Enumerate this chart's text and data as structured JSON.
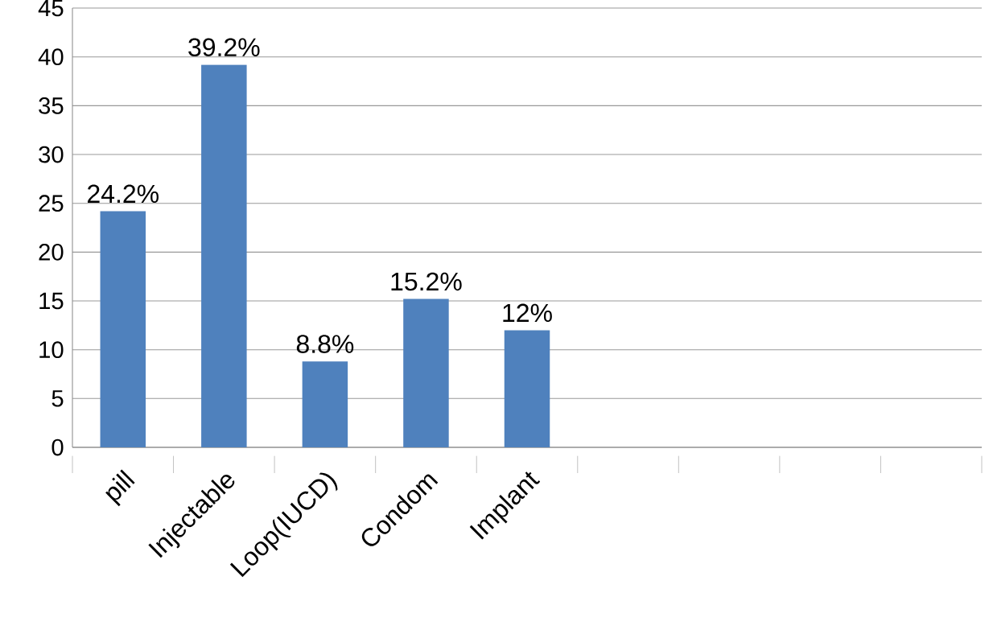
{
  "chart_data": {
    "type": "bar",
    "categories": [
      "pill",
      "Injectable",
      "Loop(IUCD)",
      "Condom",
      "Implant",
      null,
      null,
      null,
      null
    ],
    "values": [
      24.2,
      39.2,
      8.8,
      15.2,
      12,
      null,
      null,
      null,
      null
    ],
    "value_labels": [
      "24.2%",
      "39.2%",
      "8.8%",
      "15.2%",
      "12%",
      null,
      null,
      null,
      null
    ],
    "color": "#4f81bd",
    "ylim": [
      0,
      45
    ],
    "yticks": [
      0,
      5,
      10,
      15,
      20,
      25,
      30,
      35,
      40,
      45
    ],
    "grid": "y"
  }
}
